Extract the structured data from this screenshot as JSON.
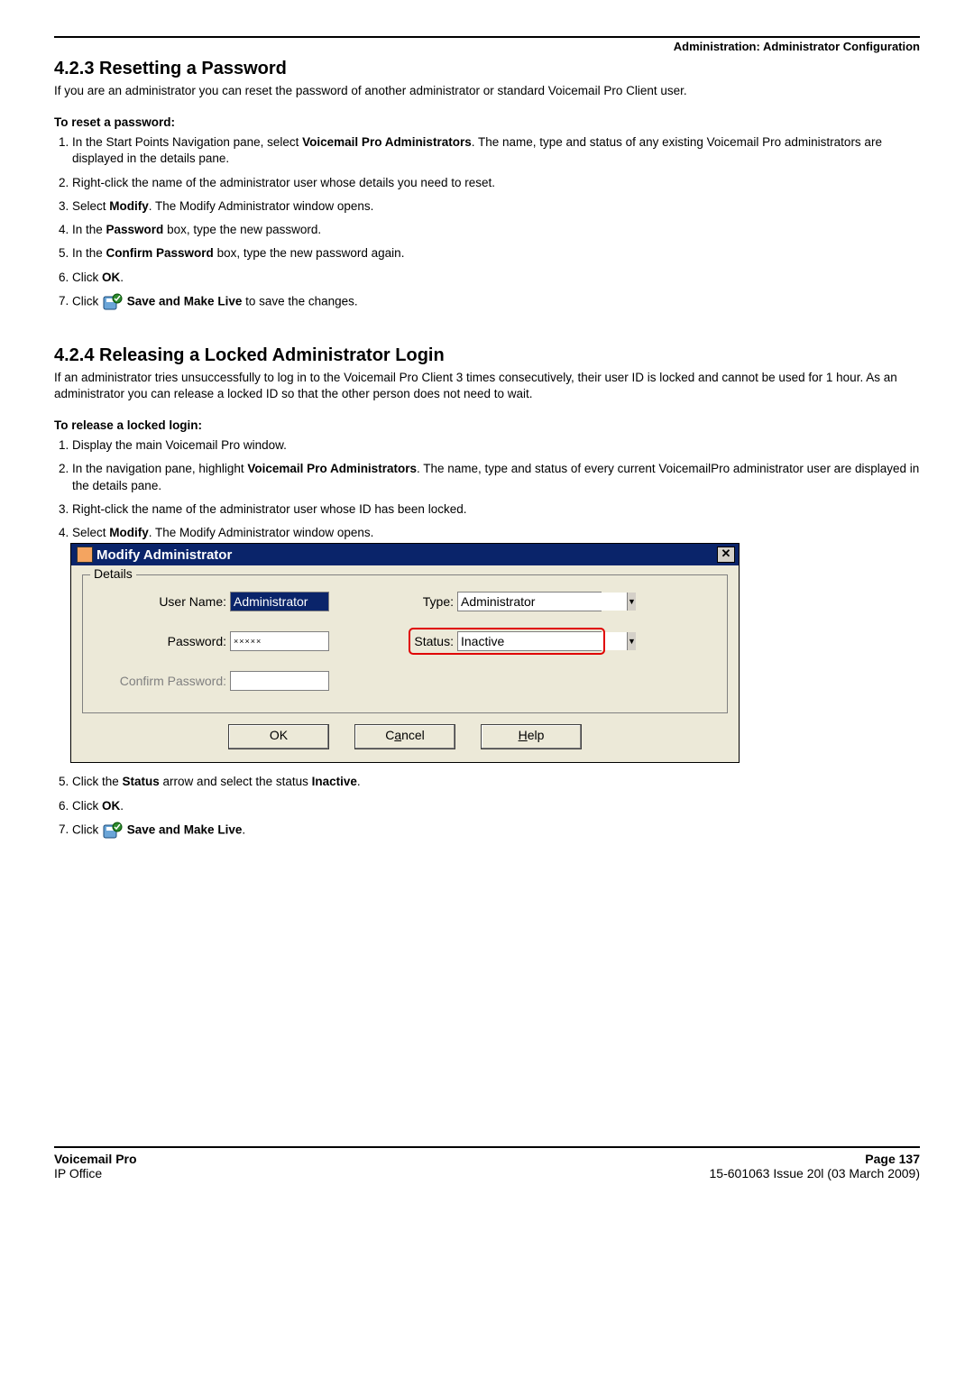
{
  "header": {
    "right": "Administration: Administrator Configuration"
  },
  "s1": {
    "title": "4.2.3 Resetting a Password",
    "intro": "If you are an administrator you can reset the password of another administrator or standard Voicemail Pro Client user.",
    "subhead": "To reset a password:",
    "step1_a": "In the Start Points Navigation pane, select ",
    "step1_b": "Voicemail Pro Administrators",
    "step1_c": ". The name, type and status of any existing Voicemail Pro administrators are displayed in the details pane.",
    "step2": "Right-click the name of the administrator user whose details you need to reset.",
    "step3_a": "Select ",
    "step3_b": "Modify",
    "step3_c": ". The Modify Administrator window opens.",
    "step4_a": "In the ",
    "step4_b": "Password",
    "step4_c": " box, type the new password.",
    "step5_a": "In the ",
    "step5_b": "Confirm Password",
    "step5_c": " box, type the new password again.",
    "step6_a": "Click ",
    "step6_b": "OK",
    "step6_c": ".",
    "step7_a": "Click ",
    "step7_b": "Save and Make Live",
    "step7_c": " to save the changes."
  },
  "s2": {
    "title": "4.2.4 Releasing a Locked Administrator Login",
    "intro": "If an administrator tries unsuccessfully to log in to the Voicemail Pro Client 3 times consecutively, their user ID is locked and cannot be used for 1 hour. As an administrator you can release a locked ID so that the other person does not need to wait.",
    "subhead": "To release a locked login:",
    "step1": "Display the main Voicemail Pro window.",
    "step2_a": "In the navigation pane, highlight ",
    "step2_b": "Voicemail Pro Administrators",
    "step2_c": ". The name, type and status of every current VoicemailPro administrator user are displayed in the details pane.",
    "step3": "Right-click the name of the administrator user whose ID has been locked.",
    "step4_a": "Select ",
    "step4_b": "Modify",
    "step4_c": ". The Modify Administrator window opens.",
    "step5_a": "Click the ",
    "step5_b": "Status",
    "step5_c": " arrow and select the status ",
    "step5_d": "Inactive",
    "step5_e": ".",
    "step6_a": "Click ",
    "step6_b": "OK",
    "step6_c": ".",
    "step7_a": "Click ",
    "step7_b": "Save and Make Live",
    "step7_c": "."
  },
  "dialog": {
    "title": "Modify Administrator",
    "legend": "Details",
    "username_lbl": "User Name:",
    "username_val": "Administrator",
    "type_lbl": "Type:",
    "type_val": "Administrator",
    "password_lbl": "Password:",
    "password_val": "×××××",
    "status_lbl": "Status:",
    "status_val": "Inactive",
    "confirm_lbl": "Confirm Password:",
    "ok_btn": "OK",
    "cancel_pre": "C",
    "cancel_u": "a",
    "cancel_post": "ncel",
    "help_u": "H",
    "help_post": "elp"
  },
  "footer": {
    "l1": "Voicemail Pro",
    "l2": "IP Office",
    "r1": "Page 137",
    "r2": "15-601063 Issue 20l (03 March 2009)"
  }
}
